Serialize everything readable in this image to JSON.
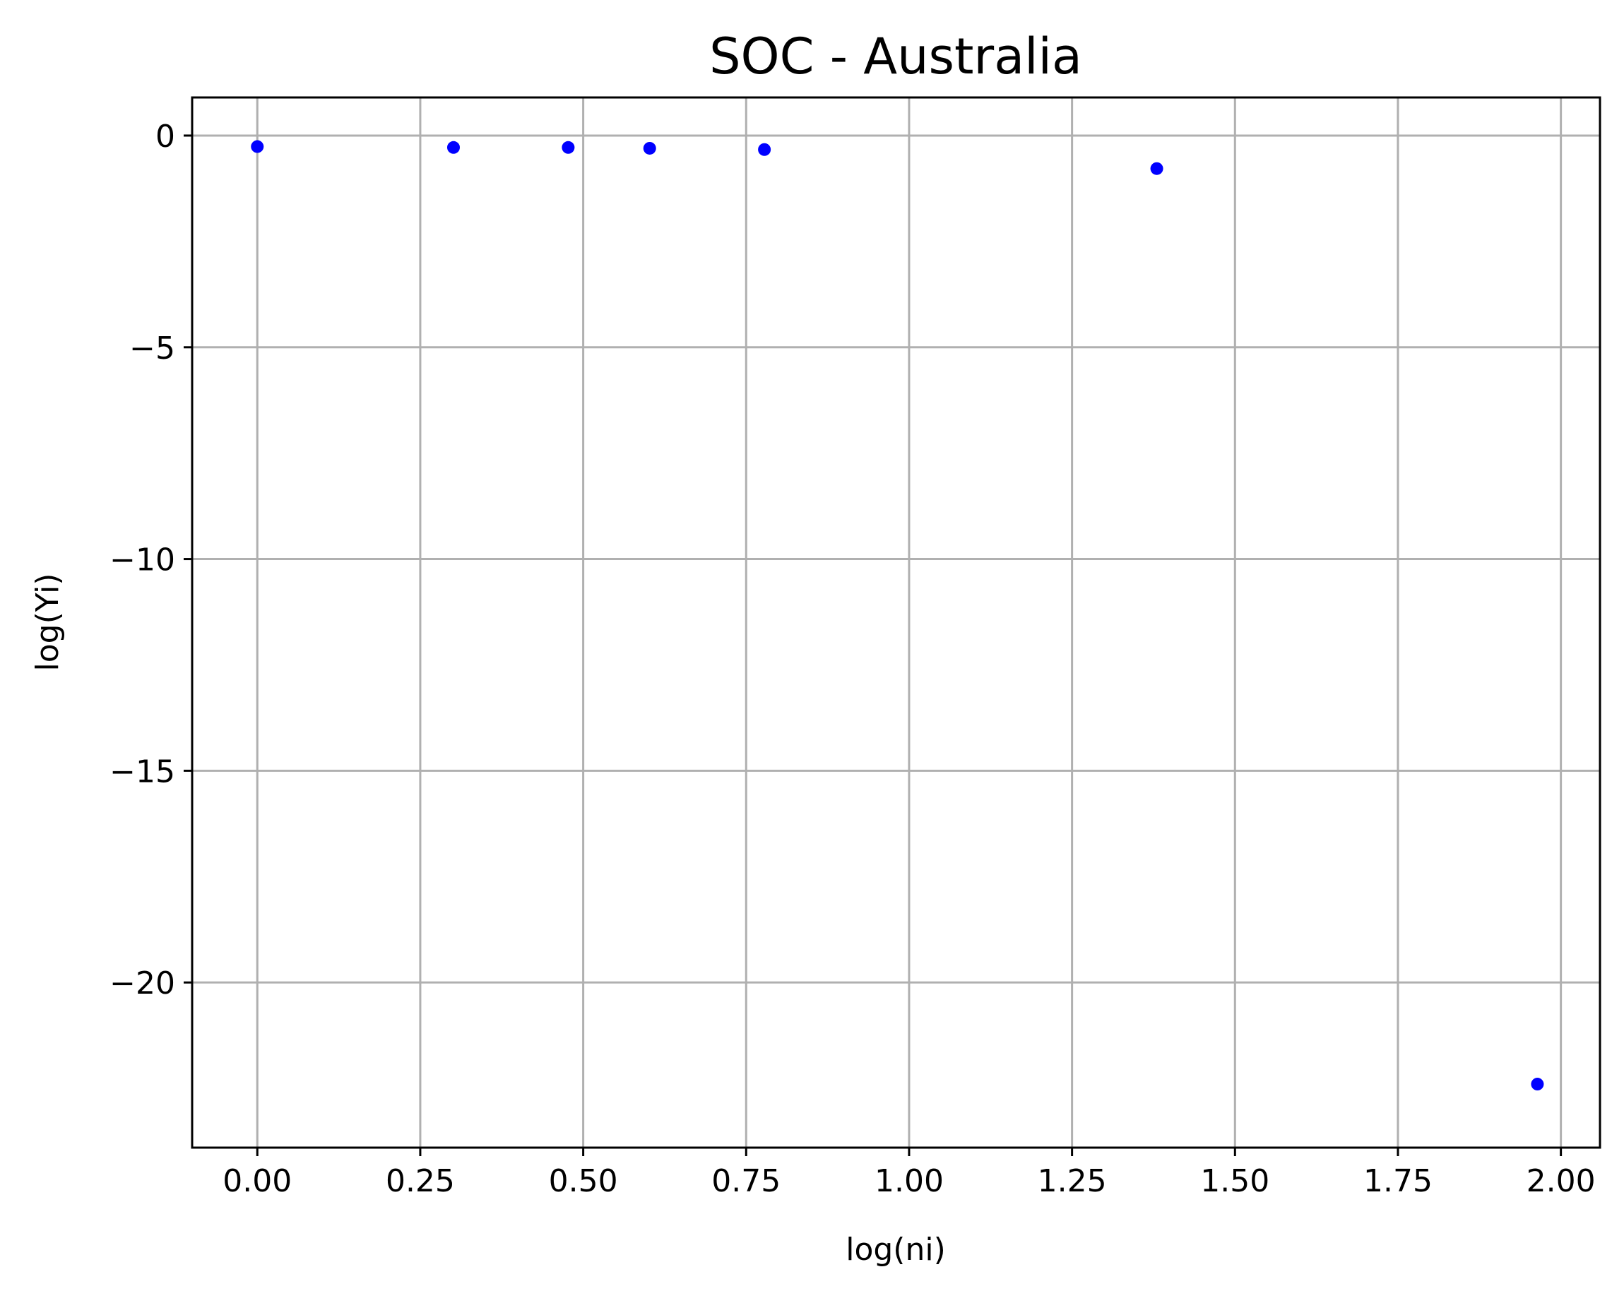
{
  "chart_data": {
    "type": "scatter",
    "title": "SOC - Australia",
    "xlabel": "log(ni)",
    "ylabel": "log(Yi)",
    "xlim": [
      -0.1,
      2.06
    ],
    "ylim": [
      -23.9,
      0.9
    ],
    "xticks": [
      0.0,
      0.25,
      0.5,
      0.75,
      1.0,
      1.25,
      1.5,
      1.75,
      2.0
    ],
    "xtick_labels": [
      "0.00",
      "0.25",
      "0.50",
      "0.75",
      "1.00",
      "1.25",
      "1.50",
      "1.75",
      "2.00"
    ],
    "yticks": [
      0,
      -5,
      -10,
      -15,
      -20
    ],
    "ytick_labels": [
      "0",
      "−5",
      "−10",
      "−15",
      "−20"
    ],
    "grid": true,
    "series": [
      {
        "color": "#0000ff",
        "x": [
          0.0,
          0.301,
          0.477,
          0.602,
          0.778,
          1.38,
          1.964
        ],
        "y": [
          -0.26,
          -0.28,
          -0.28,
          -0.3,
          -0.33,
          -0.78,
          -22.4
        ]
      }
    ]
  }
}
